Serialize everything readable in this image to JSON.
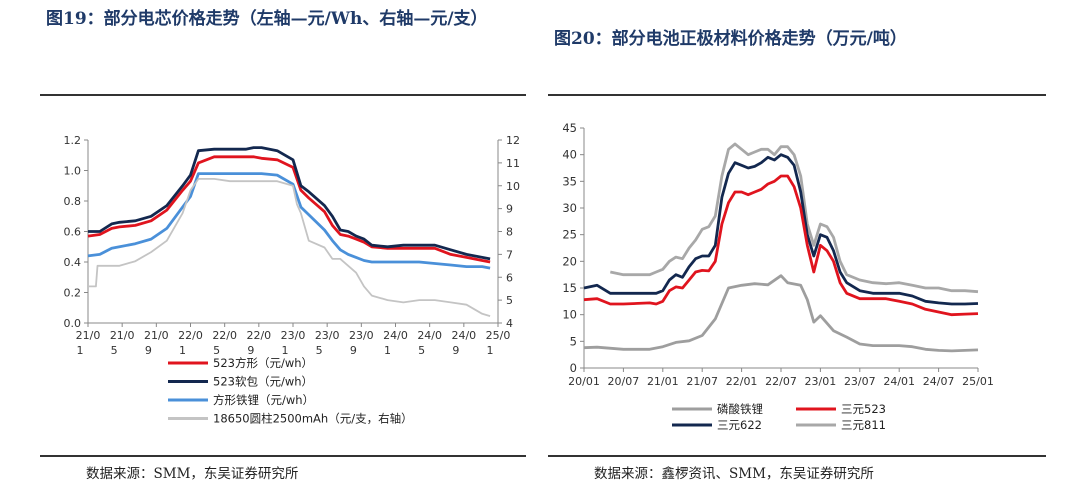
{
  "left": {
    "title": "图19：部分电芯价格走势（左轴—元/Wh、右轴—元/支）",
    "source": "数据来源：SMM，东吴证券研究所",
    "chart_data": {
      "type": "line",
      "x_ticks": [
        {
          "l1": "21/0",
          "l2": "1"
        },
        {
          "l1": "21/0",
          "l2": "5"
        },
        {
          "l1": "21/0",
          "l2": "9"
        },
        {
          "l1": "22/0",
          "l2": "1"
        },
        {
          "l1": "22/0",
          "l2": "5"
        },
        {
          "l1": "22/0",
          "l2": "9"
        },
        {
          "l1": "23/0",
          "l2": "1"
        },
        {
          "l1": "23/0",
          "l2": "5"
        },
        {
          "l1": "23/0",
          "l2": "9"
        },
        {
          "l1": "24/0",
          "l2": "1"
        },
        {
          "l1": "24/0",
          "l2": "5"
        },
        {
          "l1": "24/0",
          "l2": "9"
        },
        {
          "l1": "25/0",
          "l2": "1"
        }
      ],
      "x_range": [
        0,
        52
      ],
      "y_left": {
        "min": 0,
        "max": 1.2,
        "ticks": [
          "0.0",
          "0.2",
          "0.4",
          "0.6",
          "0.8",
          "1.0",
          "1.2"
        ]
      },
      "y_right": {
        "min": 4,
        "max": 12,
        "ticks": [
          "4",
          "5",
          "6",
          "7",
          "8",
          "9",
          "10",
          "11",
          "12"
        ]
      },
      "series": [
        {
          "name": "523方形（元/wh）",
          "color": "#e0141e",
          "axis": "left",
          "x": [
            0,
            1.5,
            3,
            4,
            6,
            8,
            10,
            12,
            13,
            14,
            16,
            18,
            20,
            21,
            22,
            24,
            26,
            27,
            28,
            30,
            31,
            32,
            33,
            34,
            35,
            36,
            38,
            40,
            42,
            44,
            46,
            48,
            50,
            51
          ],
          "y": [
            0.57,
            0.58,
            0.62,
            0.63,
            0.64,
            0.67,
            0.74,
            0.87,
            0.93,
            1.05,
            1.09,
            1.09,
            1.09,
            1.09,
            1.08,
            1.07,
            1.02,
            0.87,
            0.82,
            0.73,
            0.64,
            0.58,
            0.57,
            0.55,
            0.53,
            0.5,
            0.49,
            0.49,
            0.49,
            0.49,
            0.45,
            0.43,
            0.41,
            0.4
          ]
        },
        {
          "name": "523软包（元/wh）",
          "color": "#13284f",
          "axis": "left",
          "x": [
            0,
            1.5,
            3,
            4,
            6,
            8,
            10,
            12,
            13,
            14,
            16,
            18,
            20,
            21,
            22,
            24,
            26,
            27,
            28,
            30,
            31,
            32,
            33,
            34,
            35,
            36,
            38,
            40,
            42,
            44,
            46,
            48,
            50,
            51
          ],
          "y": [
            0.6,
            0.6,
            0.65,
            0.66,
            0.67,
            0.7,
            0.77,
            0.9,
            0.97,
            1.13,
            1.14,
            1.14,
            1.14,
            1.15,
            1.15,
            1.13,
            1.07,
            0.9,
            0.86,
            0.77,
            0.7,
            0.61,
            0.6,
            0.57,
            0.55,
            0.51,
            0.5,
            0.51,
            0.51,
            0.51,
            0.48,
            0.45,
            0.43,
            0.42
          ]
        },
        {
          "name": "方形铁锂（元/wh）",
          "color": "#4a90d9",
          "axis": "left",
          "x": [
            0,
            1.5,
            3,
            4,
            6,
            8,
            10,
            12,
            13,
            14,
            16,
            18,
            20,
            21,
            22,
            24,
            26,
            27,
            28,
            30,
            31,
            32,
            33,
            34,
            35,
            36,
            38,
            40,
            42,
            44,
            46,
            48,
            50,
            51
          ],
          "y": [
            0.44,
            0.45,
            0.49,
            0.5,
            0.52,
            0.55,
            0.62,
            0.76,
            0.83,
            0.98,
            0.98,
            0.98,
            0.98,
            0.98,
            0.98,
            0.97,
            0.91,
            0.76,
            0.71,
            0.61,
            0.54,
            0.48,
            0.45,
            0.43,
            0.41,
            0.4,
            0.4,
            0.4,
            0.4,
            0.39,
            0.38,
            0.37,
            0.37,
            0.36
          ]
        },
        {
          "name": "18650圆柱2500mAh（元/支，右轴）",
          "color": "#c4c4c4",
          "axis": "right",
          "x": [
            0,
            1,
            1.2,
            4,
            6,
            8,
            10,
            12,
            13,
            14,
            16,
            18,
            20,
            22,
            24,
            26,
            26.5,
            27,
            28,
            30,
            31,
            32,
            33,
            34,
            35,
            36,
            38,
            40,
            42,
            44,
            46,
            48,
            50,
            51
          ],
          "y": [
            5.6,
            5.6,
            6.5,
            6.5,
            6.7,
            7.1,
            7.6,
            8.8,
            9.8,
            10.3,
            10.3,
            10.2,
            10.2,
            10.2,
            10.2,
            10.0,
            9.2,
            8.8,
            7.6,
            7.3,
            6.8,
            6.8,
            6.5,
            6.2,
            5.6,
            5.2,
            5.0,
            4.9,
            5.0,
            5.0,
            4.9,
            4.8,
            4.4,
            4.3
          ]
        }
      ]
    }
  },
  "right": {
    "title": "图20：部分电池正极材料价格走势（万元/吨）",
    "source": "数据来源：鑫椤资讯、SMM，东吴证券研究所",
    "chart_data": {
      "type": "line",
      "x_ticks": [
        "20/01",
        "20/07",
        "21/01",
        "21/07",
        "22/01",
        "22/07",
        "23/01",
        "23/07",
        "24/01",
        "24/07",
        "25/01"
      ],
      "x_range": [
        0,
        60
      ],
      "y": {
        "min": 0,
        "max": 45,
        "ticks": [
          "0",
          "5",
          "10",
          "15",
          "20",
          "25",
          "30",
          "35",
          "40",
          "45"
        ]
      },
      "series": [
        {
          "name": "磷酸铁锂",
          "color": "#9e9e9e",
          "x": [
            0,
            2,
            6,
            10,
            12,
            14,
            16,
            18,
            20,
            22,
            24,
            26,
            28,
            30,
            31,
            33,
            34,
            35,
            36,
            38,
            40,
            42,
            44,
            46,
            48,
            50,
            52,
            54,
            56,
            58,
            60
          ],
          "y": [
            3.8,
            3.9,
            3.5,
            3.5,
            4.0,
            4.8,
            5.1,
            6.1,
            9.2,
            15.0,
            15.5,
            15.8,
            15.6,
            17.3,
            16.0,
            15.5,
            12.8,
            8.6,
            9.8,
            7.0,
            5.8,
            4.5,
            4.2,
            4.2,
            4.2,
            4.0,
            3.5,
            3.3,
            3.2,
            3.3,
            3.4
          ]
        },
        {
          "name": "三元523",
          "color": "#e0141e",
          "x": [
            0,
            2,
            4,
            6,
            10,
            11,
            12,
            13,
            14,
            15,
            16,
            17,
            18,
            19,
            20,
            21,
            22,
            23,
            24,
            25,
            26,
            27,
            28,
            29,
            30,
            31,
            32,
            33,
            34,
            35,
            36,
            37,
            38,
            39,
            40,
            42,
            44,
            46,
            48,
            50,
            52,
            54,
            56,
            58,
            60
          ],
          "y": [
            12.8,
            13.0,
            12.0,
            12.0,
            12.2,
            12.0,
            12.5,
            14.5,
            15.2,
            15.0,
            16.5,
            18.0,
            18.3,
            18.2,
            20.0,
            27.0,
            31.0,
            33.0,
            33.0,
            32.5,
            33.0,
            33.5,
            34.5,
            35.0,
            36.0,
            36.0,
            34.0,
            30.0,
            23.0,
            18.0,
            23.0,
            22.0,
            20.0,
            16.0,
            14.0,
            13.0,
            13.0,
            13.0,
            12.5,
            12.0,
            11.0,
            10.5,
            10.0,
            10.1,
            10.2
          ]
        },
        {
          "name": "三元622",
          "color": "#13284f",
          "x": [
            0,
            2,
            4,
            6,
            10,
            11,
            12,
            13,
            14,
            15,
            16,
            17,
            18,
            19,
            20,
            21,
            22,
            23,
            24,
            25,
            26,
            27,
            28,
            29,
            30,
            31,
            32,
            33,
            34,
            35,
            36,
            37,
            38,
            39,
            40,
            42,
            44,
            46,
            48,
            50,
            52,
            54,
            56,
            58,
            60
          ],
          "y": [
            15.0,
            15.5,
            14.0,
            14.0,
            14.0,
            14.0,
            14.5,
            16.5,
            17.5,
            17.0,
            19.0,
            20.5,
            21.0,
            21.0,
            23.0,
            32.0,
            36.5,
            38.5,
            38.0,
            37.5,
            37.8,
            38.5,
            39.5,
            39.0,
            40.0,
            39.5,
            38.0,
            33.0,
            25.0,
            21.0,
            25.0,
            24.5,
            22.0,
            18.0,
            16.0,
            14.5,
            14.0,
            14.0,
            14.0,
            13.5,
            12.5,
            12.2,
            12.0,
            12.0,
            12.1
          ]
        },
        {
          "name": "三元811",
          "color": "#a8a8a8",
          "x": [
            4,
            6,
            10,
            11,
            12,
            13,
            14,
            15,
            16,
            17,
            18,
            19,
            20,
            21,
            22,
            23,
            24,
            25,
            26,
            27,
            28,
            29,
            30,
            31,
            32,
            33,
            34,
            35,
            36,
            37,
            38,
            39,
            40,
            42,
            44,
            46,
            48,
            50,
            52,
            54,
            56,
            58,
            60
          ],
          "y": [
            18.0,
            17.5,
            17.5,
            18.0,
            18.5,
            20.0,
            20.8,
            20.5,
            22.5,
            24.0,
            26.0,
            26.5,
            28.5,
            36.0,
            41.0,
            42.0,
            41.0,
            40.0,
            40.5,
            41.0,
            41.0,
            40.0,
            41.5,
            41.5,
            40.0,
            36.0,
            27.0,
            23.0,
            27.0,
            26.5,
            24.5,
            20.0,
            17.5,
            16.5,
            16.0,
            15.8,
            16.0,
            15.5,
            15.0,
            15.0,
            14.5,
            14.5,
            14.3
          ]
        }
      ]
    }
  }
}
